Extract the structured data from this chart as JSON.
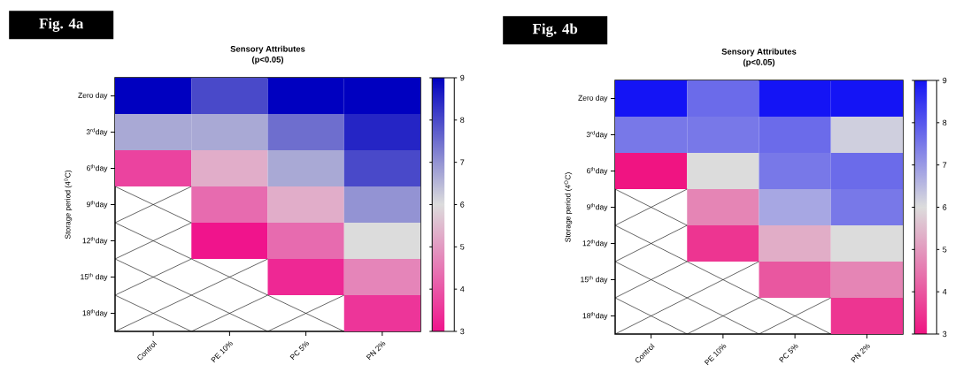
{
  "chart_data": [
    {
      "type": "heatmap",
      "title": "Sensory  Attributes",
      "subtitle": "(p<0.05)",
      "ylabel": "Storage period (4$^{0}$C)",
      "annotations": [
        "Fig. 4a"
      ],
      "categories": [
        "Control",
        "PE 10%",
        "PC 5%",
        "PN 2%"
      ],
      "y_categories": [
        "Zero day",
        "3$^{rd}$day",
        "6$^{th}$day",
        "9$^{th}$day",
        "12$^{th}$day",
        "15$^{th}$ day",
        "18$^{th}$day"
      ],
      "cells": [
        [
          9,
          8,
          9,
          9
        ],
        [
          6.7,
          6.7,
          7.5,
          8.5
        ],
        [
          3.7,
          5.3,
          6.7,
          8
        ],
        [
          null,
          4.3,
          5.3,
          7
        ],
        [
          null,
          3,
          4.3,
          6
        ],
        [
          null,
          null,
          3.3,
          4.7
        ],
        [
          null,
          null,
          null,
          3.5
        ]
      ],
      "clim": [
        3,
        9
      ],
      "cticks": [
        3,
        4,
        5,
        6,
        7,
        8,
        9
      ],
      "colors": [
        "#f0148c",
        "#dcdcdc",
        "#0000c0"
      ]
    },
    {
      "type": "heatmap",
      "title": "Sensory  Attributes",
      "subtitle": "(p<0.05)",
      "ylabel": "Storage period (4$^{O}$C)",
      "annotations": [
        "Fig. 4b"
      ],
      "categories": [
        "Control",
        "PE 10%",
        "PC 5%",
        "PN 2%"
      ],
      "y_categories": [
        "Zero day",
        "3$^{rd}$day",
        "6$^{th}$day",
        "9$^{th}$day",
        "12$^{th}$day",
        "15$^{th}$ day",
        "18$^{th}$day"
      ],
      "cells": [
        [
          9,
          7.7,
          9,
          9
        ],
        [
          7.5,
          7.5,
          7.7,
          6.2
        ],
        [
          3,
          6,
          7.5,
          7.7
        ],
        [
          null,
          4.7,
          6.8,
          7.5
        ],
        [
          null,
          3.5,
          5.3,
          6
        ],
        [
          null,
          null,
          4,
          4.7
        ],
        [
          null,
          null,
          null,
          3.5
        ]
      ],
      "clim": [
        3,
        9
      ],
      "cticks": [
        3,
        4,
        5,
        6,
        7,
        8,
        9
      ],
      "colors": [
        "#f01482",
        "#dcdcdc",
        "#1414f5"
      ]
    }
  ]
}
